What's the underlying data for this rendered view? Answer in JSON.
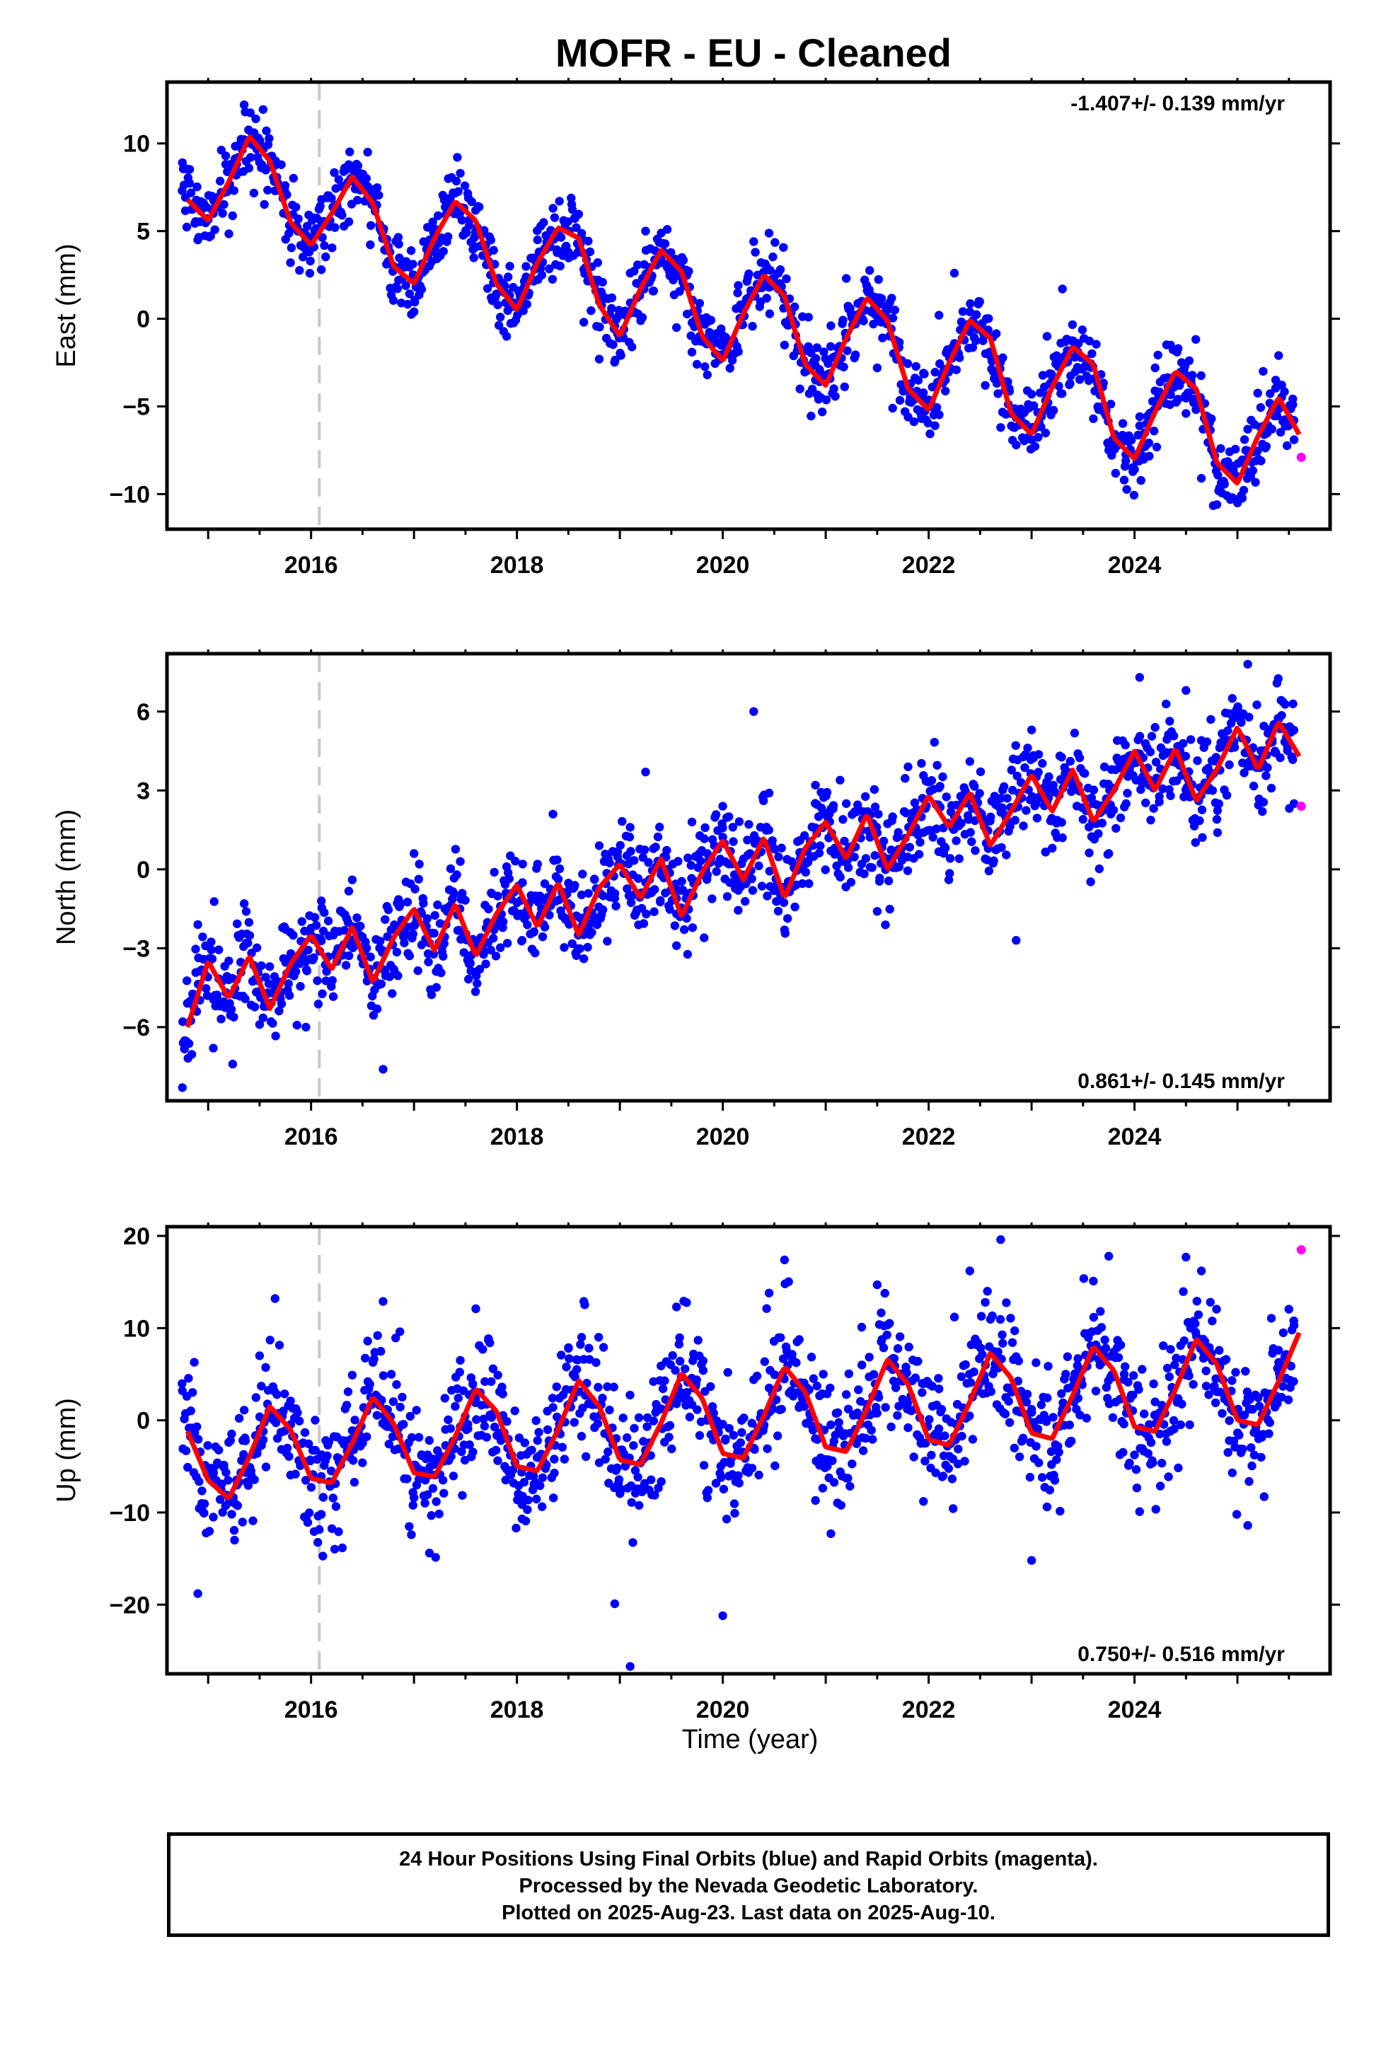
{
  "title": "MOFR  - EU - Cleaned",
  "xlabel": "Time (year)",
  "footer": {
    "line1": "24 Hour Positions Using Final Orbits (blue) and Rapid Orbits (magenta).",
    "line2": "Processed by the Nevada Geodetic Laboratory.",
    "line3": "Plotted on 2025-Aug-23. Last data on 2025-Aug-10."
  },
  "colors": {
    "final_orbits": "#0000ff",
    "rapid_orbits": "#ff00ff",
    "model_fit": "#ff0000",
    "marker_line": "#c8c8c8"
  },
  "chart_data": [
    {
      "type": "scatter",
      "name": "East",
      "ylabel": "East (mm)",
      "rate_text": "-1.407+/- 0.139 mm/yr",
      "rate_position": "top-right",
      "xlim": [
        2014.6,
        2025.9
      ],
      "ylim": [
        -12,
        13.5
      ],
      "xticks": [
        2016,
        2018,
        2020,
        2022,
        2024
      ],
      "yticks": [
        -10,
        -5,
        0,
        5,
        10
      ],
      "ytick_labels": [
        "−10",
        "−5",
        "0",
        "5",
        "10"
      ],
      "grid": false,
      "event_line_x": 2016.08,
      "series": [
        {
          "name": "",
          "kind": "fit",
          "x": [
            2014.8,
            2015.0,
            2015.2,
            2015.4,
            2015.6,
            2015.8,
            2016.0,
            2016.2,
            2016.4,
            2016.6,
            2016.8,
            2017.0,
            2017.2,
            2017.4,
            2017.6,
            2017.8,
            2018.0,
            2018.2,
            2018.4,
            2018.6,
            2018.8,
            2019.0,
            2019.2,
            2019.4,
            2019.6,
            2019.8,
            2020.0,
            2020.2,
            2020.4,
            2020.6,
            2020.8,
            2021.0,
            2021.2,
            2021.4,
            2021.6,
            2021.8,
            2022.0,
            2022.2,
            2022.4,
            2022.6,
            2022.8,
            2023.0,
            2023.2,
            2023.4,
            2023.6,
            2023.8,
            2024.0,
            2024.2,
            2024.4,
            2024.6,
            2024.8,
            2025.0,
            2025.2,
            2025.4,
            2025.6
          ],
          "y": [
            6.8,
            5.6,
            7.8,
            10.4,
            9.0,
            5.5,
            4.2,
            6.0,
            8.1,
            6.6,
            3.0,
            2.0,
            4.6,
            6.7,
            5.6,
            2.0,
            0.5,
            3.2,
            5.2,
            4.6,
            0.8,
            -1.0,
            1.7,
            3.9,
            2.7,
            -1.0,
            -2.4,
            0.3,
            2.5,
            1.3,
            -2.6,
            -3.8,
            -1.1,
            1.2,
            -0.1,
            -4.0,
            -5.2,
            -2.5,
            -0.1,
            -1.1,
            -5.4,
            -6.6,
            -3.9,
            -1.6,
            -2.6,
            -6.8,
            -8.0,
            -5.3,
            -3.0,
            -4.0,
            -8.2,
            -9.4,
            -6.7,
            -4.5,
            -6.6
          ]
        },
        {
          "name": "",
          "kind": "final_orbits",
          "x": [
            2014.75,
            2014.9,
            2015.05,
            2015.2,
            2015.35,
            2015.5,
            2015.65,
            2015.8,
            2015.95,
            2016.1,
            2016.25,
            2016.4,
            2016.55,
            2016.7,
            2016.85,
            2017.0,
            2017.15,
            2017.3,
            2017.45,
            2017.6,
            2017.75,
            2017.9,
            2018.05,
            2018.2,
            2018.35,
            2018.5,
            2018.65,
            2018.8,
            2018.95,
            2019.1,
            2019.25,
            2019.4,
            2019.55,
            2019.7,
            2019.85,
            2020.0,
            2020.15,
            2020.3,
            2020.45,
            2020.6,
            2020.75,
            2020.9,
            2021.05,
            2021.2,
            2021.35,
            2021.5,
            2021.65,
            2021.8,
            2021.95,
            2022.1,
            2022.25,
            2022.4,
            2022.55,
            2022.7,
            2022.85,
            2023.0,
            2023.15,
            2023.3,
            2023.45,
            2023.6,
            2023.75,
            2023.9,
            2024.05,
            2024.2,
            2024.35,
            2024.5,
            2024.65,
            2024.8,
            2024.95,
            2025.1,
            2025.25,
            2025.4,
            2025.55
          ],
          "y": [
            8.9,
            4.5,
            6.0,
            8.5,
            12.2,
            10.0,
            7.3,
            3.2,
            4.8,
            2.8,
            6.4,
            8.7,
            9.5,
            5.0,
            2.2,
            0.4,
            3.0,
            6.9,
            8.3,
            4.1,
            1.2,
            -1.0,
            1.1,
            4.5,
            6.3,
            3.8,
            -0.2,
            -2.3,
            -0.4,
            2.6,
            5.0,
            3.5,
            -0.5,
            -1.9,
            -3.2,
            -1.2,
            1.9,
            4.4,
            1.8,
            -1.5,
            -4.0,
            -3.5,
            -0.4,
            2.3,
            1.0,
            -2.8,
            -5.1,
            -5.6,
            -3.1,
            0.2,
            2.6,
            0.4,
            -3.8,
            -6.2,
            -7.2,
            -4.3,
            -1.0,
            1.7,
            -1.9,
            -5.7,
            -7.5,
            -9.2,
            -6.1,
            -2.8,
            -1.5,
            -5.4,
            -9.1,
            -10.6,
            -10.2,
            -6.3,
            -3.0,
            -2.1,
            -6.9
          ]
        },
        {
          "name": "",
          "kind": "rapid_orbits",
          "x": [
            2025.62
          ],
          "y": [
            -7.9
          ]
        }
      ]
    },
    {
      "type": "scatter",
      "name": "North",
      "ylabel": "North (mm)",
      "rate_text": "0.861+/- 0.145 mm/yr",
      "rate_position": "bottom-right",
      "xlim": [
        2014.6,
        2025.9
      ],
      "ylim": [
        -8.8,
        8.2
      ],
      "xticks": [
        2016,
        2018,
        2020,
        2022,
        2024
      ],
      "yticks": [
        -6,
        -3,
        0,
        3,
        6
      ],
      "ytick_labels": [
        "−6",
        "−3",
        "0",
        "3",
        "6"
      ],
      "grid": false,
      "event_line_x": 2016.08,
      "series": [
        {
          "name": "",
          "kind": "fit",
          "x": [
            2014.8,
            2015.0,
            2015.2,
            2015.4,
            2015.6,
            2015.8,
            2016.0,
            2016.2,
            2016.4,
            2016.6,
            2016.8,
            2017.0,
            2017.2,
            2017.4,
            2017.6,
            2017.8,
            2018.0,
            2018.2,
            2018.4,
            2018.6,
            2018.8,
            2019.0,
            2019.2,
            2019.4,
            2019.6,
            2019.8,
            2020.0,
            2020.2,
            2020.4,
            2020.6,
            2020.8,
            2021.0,
            2021.2,
            2021.4,
            2021.6,
            2021.8,
            2022.0,
            2022.2,
            2022.4,
            2022.6,
            2022.8,
            2023.0,
            2023.2,
            2023.4,
            2023.6,
            2023.8,
            2024.0,
            2024.2,
            2024.4,
            2024.6,
            2024.8,
            2025.0,
            2025.2,
            2025.4,
            2025.6
          ],
          "y": [
            -6.0,
            -3.5,
            -4.9,
            -3.3,
            -5.3,
            -3.6,
            -2.5,
            -3.8,
            -2.2,
            -4.3,
            -2.6,
            -1.5,
            -3.1,
            -1.3,
            -3.3,
            -1.7,
            -0.6,
            -2.2,
            -0.5,
            -2.5,
            -0.7,
            0.2,
            -1.1,
            0.4,
            -1.8,
            -0.1,
            1.1,
            -0.4,
            1.2,
            -1.1,
            0.8,
            1.8,
            0.4,
            2.1,
            0.0,
            1.3,
            2.8,
            1.6,
            2.9,
            0.9,
            2.2,
            3.6,
            2.2,
            3.8,
            1.8,
            3.0,
            4.5,
            3.0,
            4.6,
            2.6,
            3.8,
            5.4,
            3.8,
            5.6,
            4.3
          ]
        },
        {
          "name": "",
          "kind": "final_orbits",
          "x": [
            2014.75,
            2014.9,
            2015.05,
            2015.2,
            2015.35,
            2015.5,
            2015.65,
            2015.8,
            2015.95,
            2016.1,
            2016.25,
            2016.4,
            2016.55,
            2016.7,
            2016.85,
            2017.0,
            2017.15,
            2017.3,
            2017.45,
            2017.6,
            2017.75,
            2017.9,
            2018.05,
            2018.2,
            2018.35,
            2018.5,
            2018.65,
            2018.8,
            2018.95,
            2019.1,
            2019.25,
            2019.4,
            2019.55,
            2019.7,
            2019.85,
            2020.0,
            2020.15,
            2020.3,
            2020.45,
            2020.6,
            2020.75,
            2020.9,
            2021.05,
            2021.2,
            2021.35,
            2021.5,
            2021.65,
            2021.8,
            2021.95,
            2022.1,
            2022.25,
            2022.4,
            2022.55,
            2022.7,
            2022.85,
            2023.0,
            2023.15,
            2023.3,
            2023.45,
            2023.6,
            2023.75,
            2023.9,
            2024.05,
            2024.2,
            2024.35,
            2024.5,
            2024.65,
            2024.8,
            2024.95,
            2025.1,
            2025.25,
            2025.4,
            2025.55
          ],
          "y": [
            -8.3,
            -2.1,
            -6.8,
            -4.2,
            -1.3,
            -5.9,
            -4.6,
            -2.4,
            -6.0,
            -1.2,
            -3.5,
            -0.4,
            -3.9,
            -7.6,
            -2.2,
            0.6,
            -2.8,
            -1.5,
            0.3,
            -3.9,
            -0.9,
            0.1,
            -2.7,
            0.2,
            2.1,
            -1.3,
            -3.4,
            0.9,
            -1.1,
            1.6,
            3.7,
            -0.2,
            -2.9,
            1.8,
            0.6,
            2.4,
            -0.8,
            6.0,
            2.9,
            -2.3,
            1.1,
            3.2,
            0.7,
            2.5,
            0.2,
            -1.6,
            2.0,
            3.9,
            1.4,
            3.1,
            2.0,
            4.1,
            0.4,
            2.7,
            -2.7,
            5.3,
            3.0,
            1.2,
            4.4,
            2.5,
            0.6,
            4.2,
            7.3,
            5.4,
            2.8,
            6.8,
            4.9,
            1.9,
            6.5,
            7.8,
            4.0,
            5.7,
            2.5
          ]
        },
        {
          "name": "",
          "kind": "rapid_orbits",
          "x": [
            2025.62
          ],
          "y": [
            2.4
          ]
        }
      ]
    },
    {
      "type": "scatter",
      "name": "Up",
      "ylabel": "Up (mm)",
      "rate_text": "0.750+/- 0.516 mm/yr",
      "rate_position": "bottom-right",
      "xlim": [
        2014.6,
        2025.9
      ],
      "ylim": [
        -27.5,
        21
      ],
      "xticks": [
        2016,
        2018,
        2020,
        2022,
        2024
      ],
      "yticks": [
        -20,
        -10,
        0,
        10,
        20
      ],
      "ytick_labels": [
        "−20",
        "−10",
        "0",
        "10",
        "20"
      ],
      "grid": false,
      "event_line_x": 2016.08,
      "series": [
        {
          "name": "",
          "kind": "fit",
          "x": [
            2014.8,
            2015.0,
            2015.2,
            2015.4,
            2015.6,
            2015.8,
            2016.0,
            2016.2,
            2016.4,
            2016.6,
            2016.8,
            2017.0,
            2017.2,
            2017.4,
            2017.6,
            2017.8,
            2018.0,
            2018.2,
            2018.4,
            2018.6,
            2018.8,
            2019.0,
            2019.2,
            2019.4,
            2019.6,
            2019.8,
            2020.0,
            2020.2,
            2020.4,
            2020.6,
            2020.8,
            2021.0,
            2021.2,
            2021.4,
            2021.6,
            2021.8,
            2022.0,
            2022.2,
            2022.4,
            2022.6,
            2022.8,
            2023.0,
            2023.2,
            2023.4,
            2023.6,
            2023.8,
            2024.0,
            2024.2,
            2024.4,
            2024.6,
            2024.8,
            2025.0,
            2025.2,
            2025.4,
            2025.6
          ],
          "y": [
            -1.2,
            -6.5,
            -8.5,
            -4.0,
            1.5,
            -1.0,
            -6.3,
            -6.8,
            -2.5,
            2.5,
            -0.3,
            -5.7,
            -6.1,
            -1.8,
            3.4,
            1.0,
            -5.0,
            -5.5,
            -1.0,
            4.3,
            1.5,
            -4.3,
            -4.8,
            -0.3,
            5.1,
            2.4,
            -3.6,
            -4.1,
            0.5,
            5.8,
            3.1,
            -2.9,
            -3.4,
            1.2,
            6.6,
            3.9,
            -2.1,
            -2.7,
            2.0,
            7.3,
            4.6,
            -1.4,
            -2.0,
            2.7,
            8.0,
            5.4,
            -0.7,
            -1.2,
            3.4,
            8.8,
            6.1,
            0.0,
            -0.5,
            4.2,
            9.5
          ]
        },
        {
          "name": "",
          "kind": "final_orbits",
          "x": [
            2014.75,
            2014.9,
            2015.05,
            2015.2,
            2015.35,
            2015.5,
            2015.65,
            2015.8,
            2015.95,
            2016.1,
            2016.25,
            2016.4,
            2016.55,
            2016.7,
            2016.85,
            2017.0,
            2017.15,
            2017.3,
            2017.45,
            2017.6,
            2017.75,
            2017.9,
            2018.05,
            2018.2,
            2018.35,
            2018.5,
            2018.65,
            2018.8,
            2018.95,
            2019.1,
            2019.25,
            2019.4,
            2019.55,
            2019.7,
            2019.85,
            2020.0,
            2020.15,
            2020.3,
            2020.45,
            2020.6,
            2020.75,
            2020.9,
            2021.05,
            2021.2,
            2021.35,
            2021.5,
            2021.65,
            2021.8,
            2021.95,
            2022.1,
            2022.25,
            2022.4,
            2022.55,
            2022.7,
            2022.85,
            2023.0,
            2023.15,
            2023.3,
            2023.45,
            2023.6,
            2023.75,
            2023.9,
            2024.05,
            2024.2,
            2024.35,
            2024.5,
            2024.65,
            2024.8,
            2024.95,
            2025.1,
            2025.25,
            2025.4,
            2025.55
          ],
          "y": [
            3.2,
            -18.8,
            -10.5,
            -2.4,
            1.1,
            7.0,
            13.2,
            2.1,
            -4.5,
            -10.2,
            -1.8,
            4.9,
            8.6,
            12.9,
            -3.1,
            -8.4,
            -14.4,
            2.4,
            6.5,
            12.1,
            4.2,
            -5.3,
            -10.7,
            -2.2,
            1.4,
            7.8,
            12.9,
            -4.6,
            -19.9,
            -26.7,
            -3.8,
            5.9,
            12.3,
            1.7,
            -8.4,
            -21.2,
            -6.0,
            4.4,
            13.8,
            17.4,
            1.6,
            -8.7,
            -12.3,
            2.8,
            10.1,
            14.7,
            5.5,
            -0.8,
            -8.8,
            3.4,
            11.2,
            16.2,
            12.8,
            19.6,
            6.9,
            -15.2,
            -9.4,
            1.2,
            6.7,
            15.1,
            17.8,
            5.0,
            -9.9,
            2.0,
            7.7,
            17.7,
            16.2,
            3.1,
            -5.7,
            -11.4,
            0.5,
            7.6,
            10.3
          ]
        },
        {
          "name": "",
          "kind": "rapid_orbits",
          "x": [
            2025.62
          ],
          "y": [
            18.5
          ]
        }
      ]
    }
  ]
}
